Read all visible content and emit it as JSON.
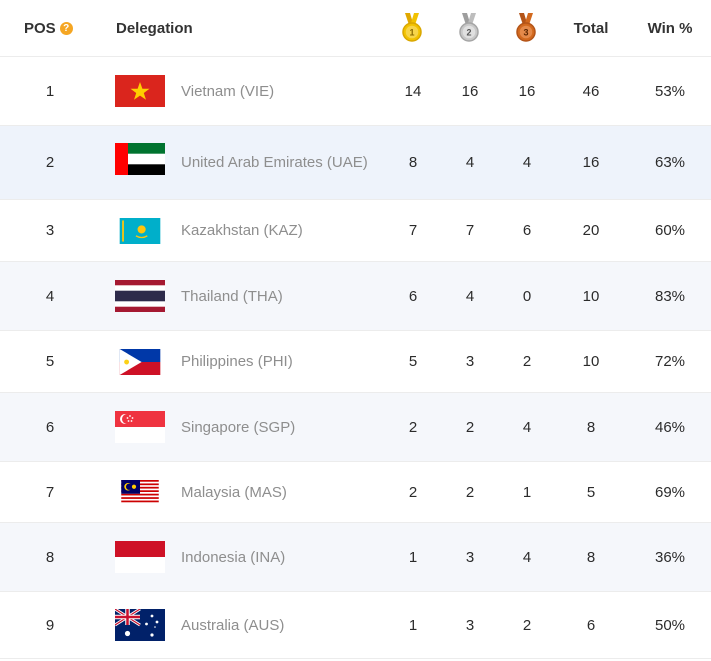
{
  "header": {
    "pos_label": "POS",
    "help_icon_glyph": "?",
    "delegation_label": "Delegation",
    "gold_medal_number": "1",
    "silver_medal_number": "2",
    "bronze_medal_number": "3",
    "total_label": "Total",
    "win_label": "Win %",
    "icons": [
      "help-icon",
      "gold-medal-icon",
      "silver-medal-icon",
      "bronze-medal-icon"
    ]
  },
  "colors": {
    "gold": "#f2c200",
    "silver": "#bdbdbd",
    "bronze": "#d2691e",
    "help": "#f5a623",
    "name_text": "#8e8e8e"
  },
  "rows": [
    {
      "pos": "1",
      "name": "Vietnam (VIE)",
      "gold": "14",
      "silver": "16",
      "bronze": "16",
      "total": "46",
      "win": "53%"
    },
    {
      "pos": "2",
      "name": "United Arab Emirates (UAE)",
      "gold": "8",
      "silver": "4",
      "bronze": "4",
      "total": "16",
      "win": "63%"
    },
    {
      "pos": "3",
      "name": "Kazakhstan (KAZ)",
      "gold": "7",
      "silver": "7",
      "bronze": "6",
      "total": "20",
      "win": "60%"
    },
    {
      "pos": "4",
      "name": "Thailand (THA)",
      "gold": "6",
      "silver": "4",
      "bronze": "0",
      "total": "10",
      "win": "83%"
    },
    {
      "pos": "5",
      "name": "Philippines (PHI)",
      "gold": "5",
      "silver": "3",
      "bronze": "2",
      "total": "10",
      "win": "72%"
    },
    {
      "pos": "6",
      "name": "Singapore (SGP)",
      "gold": "2",
      "silver": "2",
      "bronze": "4",
      "total": "8",
      "win": "46%"
    },
    {
      "pos": "7",
      "name": "Malaysia (MAS)",
      "gold": "2",
      "silver": "2",
      "bronze": "1",
      "total": "5",
      "win": "69%"
    },
    {
      "pos": "8",
      "name": "Indonesia (INA)",
      "gold": "1",
      "silver": "3",
      "bronze": "4",
      "total": "8",
      "win": "36%"
    },
    {
      "pos": "9",
      "name": "Australia (AUS)",
      "gold": "1",
      "silver": "3",
      "bronze": "2",
      "total": "6",
      "win": "50%"
    }
  ]
}
